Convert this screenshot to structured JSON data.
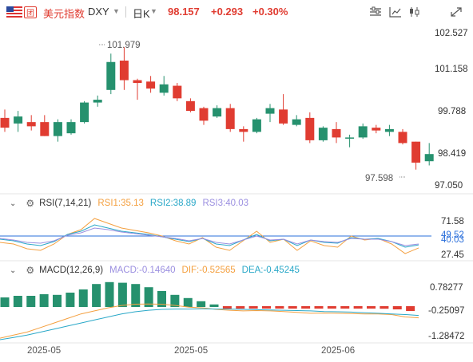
{
  "header": {
    "flag_icon": "us-flag-icon",
    "badge_text": "团",
    "symbol_name": "美元指数",
    "symbol_code": "DXY",
    "timeframe": "日K",
    "price": "98.157",
    "change": "+0.293",
    "change_pct": "+0.30%",
    "colors": {
      "up": "#e03c31",
      "down": "#26916e",
      "text": "#333333"
    }
  },
  "toolbar_icons": [
    "indicator-settings-icon",
    "chart-type-icon",
    "candle-icon",
    "fullscreen-icon"
  ],
  "rsi": {
    "label": "RSI(7,14,21)",
    "rsi1": "RSI1:35.13",
    "rsi2": "RSI2:38.89",
    "rsi3": "RSI3:40.03",
    "axis": [
      "71.58",
      "49.52",
      "40.03",
      "27.45"
    ],
    "colors": {
      "rsi1": "#f4a040",
      "rsi2": "#2aa8c8",
      "rsi3": "#9b8fe0"
    }
  },
  "macd": {
    "label": "MACD(12,26,9)",
    "macd": "MACD:-0.14640",
    "dif": "DIF:-0.52565",
    "dea": "DEA:-0.45245",
    "axis": [
      "0.78277",
      "-0.25097",
      "-1.28472"
    ],
    "colors": {
      "macd": "#9b8fe0",
      "dif": "#f4a040",
      "dea": "#2aa8c8"
    }
  },
  "chart_data": {
    "type": "candlestick",
    "y_axis_labels": [
      "102.527",
      "101.158",
      "99.788",
      "98.419",
      "97.050"
    ],
    "ylim": [
      97.05,
      102.527
    ],
    "x_axis_labels": [
      "2025-05",
      "2025-05",
      "2025-06"
    ],
    "max_label": "101.979",
    "min_label": "97.598",
    "candles": [
      {
        "o": 99.45,
        "h": 99.75,
        "l": 98.95,
        "c": 99.1
      },
      {
        "o": 99.25,
        "h": 99.7,
        "l": 98.95,
        "c": 99.5
      },
      {
        "o": 99.3,
        "h": 99.55,
        "l": 99.0,
        "c": 99.15
      },
      {
        "o": 99.3,
        "h": 99.55,
        "l": 98.8,
        "c": 98.8
      },
      {
        "o": 98.8,
        "h": 99.4,
        "l": 98.6,
        "c": 99.3
      },
      {
        "o": 98.9,
        "h": 99.4,
        "l": 98.85,
        "c": 99.3
      },
      {
        "o": 99.3,
        "h": 100.05,
        "l": 99.25,
        "c": 100.0
      },
      {
        "o": 100.0,
        "h": 100.25,
        "l": 99.85,
        "c": 100.1
      },
      {
        "o": 100.45,
        "h": 101.75,
        "l": 100.3,
        "c": 101.45
      },
      {
        "o": 101.5,
        "h": 101.98,
        "l": 100.45,
        "c": 100.8
      },
      {
        "o": 100.8,
        "h": 100.85,
        "l": 100.1,
        "c": 100.7
      },
      {
        "o": 100.75,
        "h": 100.95,
        "l": 100.35,
        "c": 100.5
      },
      {
        "o": 100.35,
        "h": 100.95,
        "l": 100.25,
        "c": 100.65
      },
      {
        "o": 100.6,
        "h": 100.7,
        "l": 100.05,
        "c": 100.15
      },
      {
        "o": 100.05,
        "h": 100.15,
        "l": 99.65,
        "c": 99.7
      },
      {
        "o": 99.8,
        "h": 99.85,
        "l": 99.2,
        "c": 99.35
      },
      {
        "o": 99.5,
        "h": 99.9,
        "l": 99.45,
        "c": 99.8
      },
      {
        "o": 99.8,
        "h": 99.95,
        "l": 98.95,
        "c": 99.05
      },
      {
        "o": 99.05,
        "h": 99.15,
        "l": 98.6,
        "c": 98.95
      },
      {
        "o": 98.95,
        "h": 99.45,
        "l": 98.9,
        "c": 99.4
      },
      {
        "o": 99.6,
        "h": 99.95,
        "l": 99.3,
        "c": 99.8
      },
      {
        "o": 99.75,
        "h": 100.3,
        "l": 99.2,
        "c": 99.25
      },
      {
        "o": 99.2,
        "h": 99.55,
        "l": 99.15,
        "c": 99.4
      },
      {
        "o": 99.45,
        "h": 99.65,
        "l": 98.55,
        "c": 98.65
      },
      {
        "o": 98.65,
        "h": 99.15,
        "l": 98.6,
        "c": 99.1
      },
      {
        "o": 99.05,
        "h": 99.3,
        "l": 98.55,
        "c": 98.75
      },
      {
        "o": 98.75,
        "h": 98.85,
        "l": 98.4,
        "c": 98.75
      },
      {
        "o": 98.75,
        "h": 99.25,
        "l": 98.7,
        "c": 99.15
      },
      {
        "o": 99.1,
        "h": 99.2,
        "l": 98.9,
        "c": 99.0
      },
      {
        "o": 98.95,
        "h": 99.2,
        "l": 98.8,
        "c": 99.05
      },
      {
        "o": 98.95,
        "h": 99.05,
        "l": 98.5,
        "c": 98.55
      },
      {
        "o": 98.6,
        "h": 98.6,
        "l": 97.6,
        "c": 97.85
      },
      {
        "o": 97.9,
        "h": 98.55,
        "l": 97.75,
        "c": 98.157
      }
    ],
    "rsi_series": {
      "rsi1": [
        42,
        40,
        34,
        32,
        40,
        52,
        58,
        72,
        66,
        60,
        57,
        54,
        50,
        44,
        40,
        48,
        36,
        32,
        44,
        56,
        42,
        46,
        32,
        44,
        38,
        36,
        50,
        45,
        47,
        40,
        28,
        35.13
      ],
      "rsi2": [
        46,
        44,
        40,
        38,
        43,
        52,
        56,
        64,
        60,
        56,
        54,
        52,
        49,
        46,
        43,
        47,
        40,
        38,
        45,
        52,
        44,
        46,
        38,
        45,
        42,
        41,
        48,
        46,
        47,
        43,
        36,
        38.89
      ],
      "rsi3": [
        47,
        45,
        42,
        41,
        44,
        51,
        54,
        60,
        58,
        55,
        53,
        51,
        49,
        47,
        44,
        47,
        42,
        40,
        45,
        50,
        45,
        46,
        40,
        45,
        43,
        42,
        47,
        46,
        46,
        43,
        38,
        40.03
      ]
    },
    "macd_hist": [
      0.3,
      0.35,
      0.35,
      0.4,
      0.38,
      0.45,
      0.55,
      0.72,
      0.78,
      0.76,
      0.72,
      0.62,
      0.5,
      0.38,
      0.28,
      0.18,
      0.08,
      -0.05,
      -0.05,
      -0.04,
      -0.04,
      -0.05,
      -0.06,
      -0.06,
      -0.07,
      -0.07,
      -0.07,
      -0.06,
      -0.07,
      -0.08,
      -0.1,
      -0.15
    ],
    "dif_series": [
      -1.2,
      -1.1,
      -1.0,
      -0.85,
      -0.7,
      -0.55,
      -0.4,
      -0.3,
      -0.2,
      -0.12,
      -0.08,
      -0.07,
      -0.08,
      -0.12,
      -0.18,
      -0.2,
      -0.25,
      -0.28,
      -0.3,
      -0.29,
      -0.3,
      -0.32,
      -0.35,
      -0.38,
      -0.37,
      -0.38,
      -0.39,
      -0.4,
      -0.4,
      -0.42,
      -0.5,
      -0.53
    ],
    "dea_series": [
      -1.25,
      -1.18,
      -1.1,
      -1.0,
      -0.9,
      -0.8,
      -0.7,
      -0.6,
      -0.5,
      -0.4,
      -0.33,
      -0.28,
      -0.25,
      -0.24,
      -0.24,
      -0.23,
      -0.24,
      -0.24,
      -0.25,
      -0.26,
      -0.27,
      -0.28,
      -0.29,
      -0.3,
      -0.32,
      -0.33,
      -0.34,
      -0.36,
      -0.38,
      -0.4,
      -0.42,
      -0.45
    ]
  }
}
